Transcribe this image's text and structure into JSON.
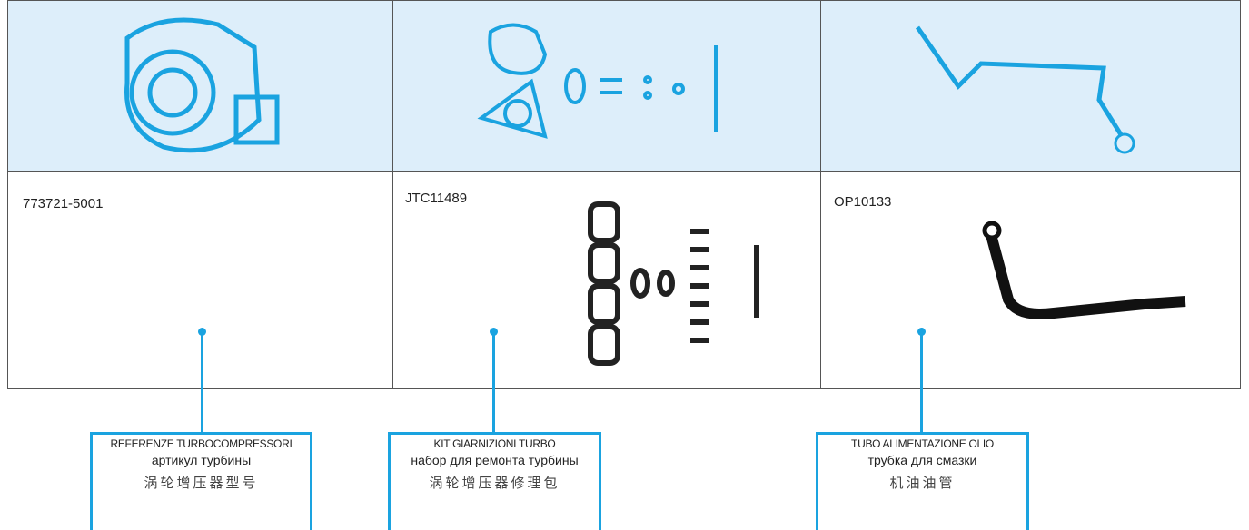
{
  "items": [
    {
      "part_number": "773721-5001",
      "label": [
        "REFERENZE TURBOCOMPRESSORI",
        "артикул турбины",
        "涡轮增压器型号"
      ]
    },
    {
      "part_number": "JTC11489",
      "label": [
        "KIT GIARNIZIONI TURBO",
        "набор для ремонта турбины",
        "涡轮增压器修理包"
      ]
    },
    {
      "part_number": "OP10133",
      "label": [
        "TUBO ALIMENTAZIONE OLIO",
        "трубка для смазки",
        "机油油管"
      ]
    }
  ]
}
